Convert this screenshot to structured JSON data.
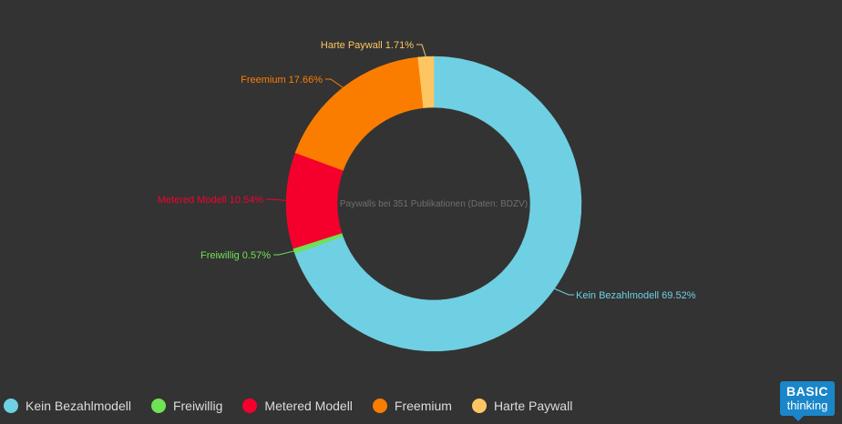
{
  "chart_data": {
    "type": "pie",
    "center_text": "Paywalls bei 351 Publikationen (Daten: BDZV)",
    "series": [
      {
        "name": "Kein Bezahlmodell",
        "value": 69.52,
        "label": "Kein Bezahlmodell 69.52%",
        "color": "#6fd0e3"
      },
      {
        "name": "Freiwillig",
        "value": 0.57,
        "label": "Freiwillig 0.57%",
        "color": "#6fe255"
      },
      {
        "name": "Metered Modell",
        "value": 10.54,
        "label": "Metered Modell 10.54%",
        "color": "#f5002d"
      },
      {
        "name": "Freemium",
        "value": 17.66,
        "label": "Freemium 17.66%",
        "color": "#fb7d00"
      },
      {
        "name": "Harte Paywall",
        "value": 1.71,
        "label": "Harte Paywall 1.71%",
        "color": "#fdc662"
      }
    ],
    "legend_position": "bottom-left"
  },
  "logo": {
    "top": "BASIC",
    "bottom": "thinking"
  }
}
